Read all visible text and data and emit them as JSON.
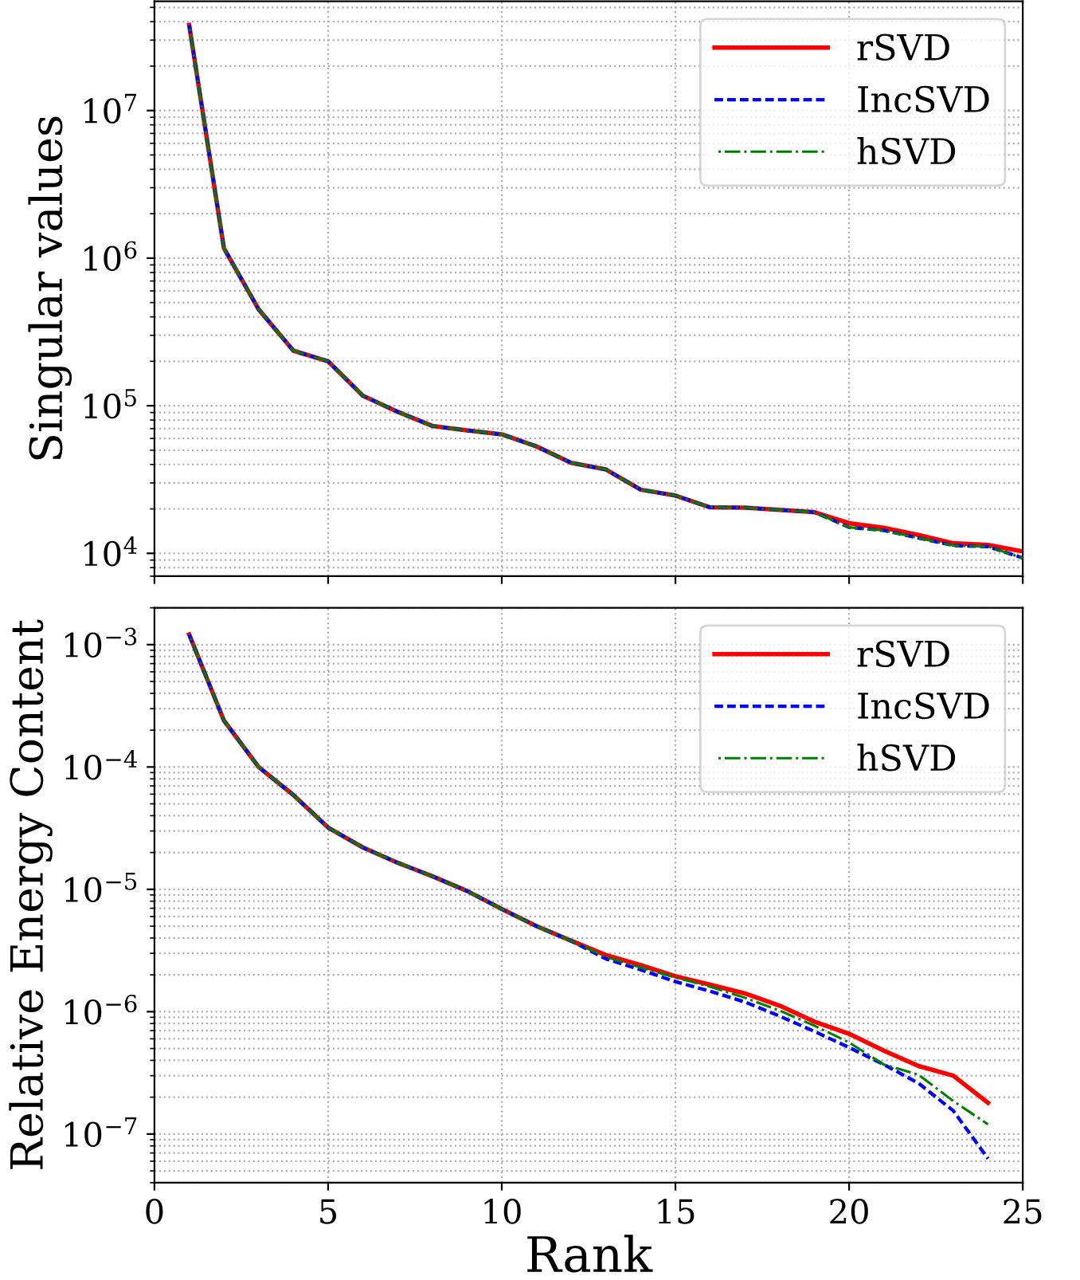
{
  "chart_data": [
    {
      "type": "line",
      "ylabel": "Singular values",
      "log": "y",
      "grid": true,
      "legend": "top right",
      "tick_labels": "y",
      "x": [
        1,
        2,
        3,
        4,
        5,
        6,
        7,
        8,
        9,
        10,
        11,
        12,
        13,
        14,
        15,
        16,
        17,
        18,
        19,
        20,
        21,
        22,
        23,
        24,
        25
      ],
      "xlim": [
        0,
        25
      ],
      "xticks": [
        0,
        5,
        10,
        15,
        20,
        25
      ],
      "ylim": [
        7000,
        55000000
      ],
      "yticks": [
        {
          "value": 10000,
          "label": "10$^{4}$"
        },
        {
          "value": 100000,
          "label": "10$^{5}$"
        },
        {
          "value": 1000000,
          "label": "10$^{6}$"
        },
        {
          "value": 10000000,
          "label": "10$^{7}$"
        }
      ],
      "series": [
        {
          "name": "rSVD",
          "color": "#ff0000",
          "line_style": "solid",
          "values": [
            38000000,
            1170000,
            450000,
            236000,
            200000,
            117000,
            91000,
            73000,
            68000,
            64000,
            53000,
            41000,
            37000,
            27000,
            24600,
            20500,
            20400,
            19700,
            19000,
            16000,
            14900,
            13300,
            11700,
            11400,
            10300
          ]
        },
        {
          "name": "IncSVD",
          "color": "#0000ff",
          "line_style": "dashed",
          "values": [
            38000000,
            1170000,
            450000,
            236000,
            200000,
            117000,
            91000,
            73000,
            68000,
            64000,
            53000,
            41000,
            37000,
            27000,
            24600,
            20500,
            20400,
            19700,
            19000,
            15000,
            14300,
            12700,
            11300,
            11100,
            9300
          ]
        },
        {
          "name": "hSVD",
          "color": "#008000",
          "line_style": "dashdot",
          "values": [
            38000000,
            1170000,
            450000,
            236000,
            200000,
            117000,
            91000,
            73000,
            68000,
            64000,
            53000,
            41000,
            37000,
            27000,
            24600,
            20500,
            20400,
            19700,
            19000,
            15000,
            14300,
            12700,
            11300,
            11100,
            9300
          ]
        }
      ]
    },
    {
      "type": "line",
      "xlabel": "Rank",
      "ylabel": "Relative Energy Content",
      "log": "y",
      "grid": true,
      "legend": "top right",
      "x": [
        1,
        2,
        3,
        4,
        5,
        6,
        7,
        8,
        9,
        10,
        11,
        12,
        13,
        14,
        15,
        16,
        17,
        18,
        19,
        20,
        21,
        22,
        23,
        24
      ],
      "xlim": [
        0,
        25
      ],
      "xticks": [
        0,
        5,
        10,
        15,
        20,
        25
      ],
      "ylim": [
        4e-08,
        0.002
      ],
      "yticks": [
        {
          "value": 1e-07,
          "label": "10$^{−7}$"
        },
        {
          "value": 1e-06,
          "label": "10$^{−6}$"
        },
        {
          "value": 1e-05,
          "label": "10$^{−5}$"
        },
        {
          "value": 0.0001,
          "label": "10$^{−4}$"
        },
        {
          "value": 0.001,
          "label": "10$^{−3}$"
        }
      ],
      "series": [
        {
          "name": "rSVD",
          "color": "#ff0000",
          "line_style": "solid",
          "values": [
            0.00121,
            0.00024,
            0.0001,
            5.9e-05,
            3.2e-05,
            2.2e-05,
            1.65e-05,
            1.28e-05,
            9.7e-06,
            6.9e-06,
            5e-06,
            3.8e-06,
            2.9e-06,
            2.4e-06,
            1.95e-06,
            1.66e-06,
            1.41e-06,
            1.12e-06,
            8.3e-07,
            6.6e-07,
            4.8e-07,
            3.6e-07,
            3e-07,
            1.8e-07
          ]
        },
        {
          "name": "IncSVD",
          "color": "#0000ff",
          "line_style": "dashed",
          "values": [
            0.00121,
            0.00024,
            0.0001,
            5.9e-05,
            3.2e-05,
            2.2e-05,
            1.65e-05,
            1.28e-05,
            9.7e-06,
            6.9e-06,
            5e-06,
            3.8e-06,
            2.7e-06,
            2.2e-06,
            1.76e-06,
            1.47e-06,
            1.2e-06,
            9.2e-07,
            6.9e-07,
            5.1e-07,
            3.7e-07,
            2.6e-07,
            1.55e-07,
            6.3e-08
          ]
        },
        {
          "name": "hSVD",
          "color": "#008000",
          "line_style": "dashdot",
          "values": [
            0.00121,
            0.00024,
            0.0001,
            5.9e-05,
            3.2e-05,
            2.2e-05,
            1.65e-05,
            1.28e-05,
            9.7e-06,
            6.9e-06,
            5e-06,
            3.8e-06,
            2.8e-06,
            2.3e-06,
            1.9e-06,
            1.6e-06,
            1.3e-06,
            1.02e-06,
            7.7e-07,
            5.6e-07,
            3.7e-07,
            3.05e-07,
            1.86e-07,
            1.2e-07
          ]
        }
      ]
    }
  ]
}
